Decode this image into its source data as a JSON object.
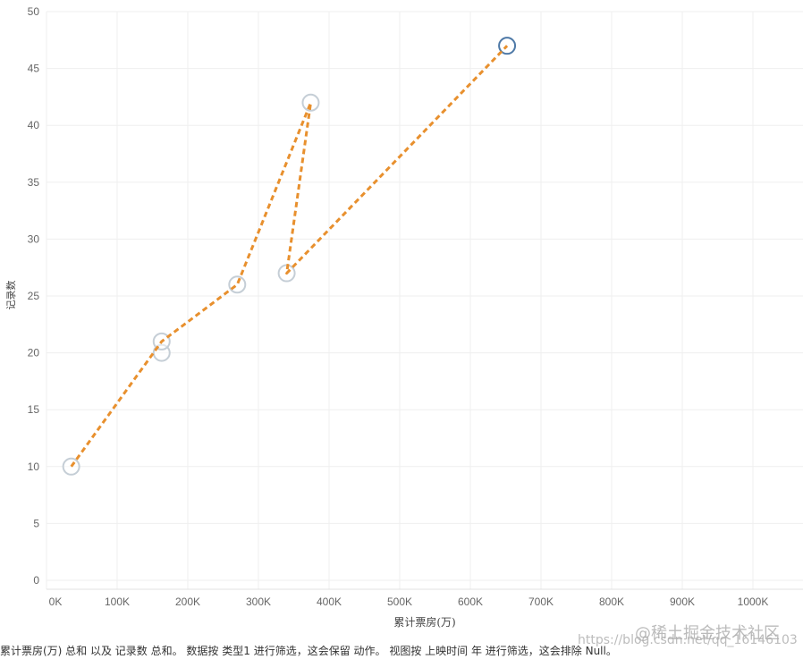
{
  "chart_data": {
    "type": "scatter",
    "title": "",
    "xlabel": "累计票房(万)",
    "ylabel": "记录数",
    "xlim": [
      0,
      1060000
    ],
    "ylim": [
      0,
      50
    ],
    "x_ticks": [
      "0K",
      "100K",
      "200K",
      "300K",
      "400K",
      "500K",
      "600K",
      "700K",
      "800K",
      "900K",
      "1000K"
    ],
    "y_ticks": [
      "0",
      "5",
      "10",
      "15",
      "20",
      "25",
      "30",
      "35",
      "40",
      "45",
      "50"
    ],
    "grid": true,
    "points": [
      {
        "x": 35000,
        "y": 10,
        "highlight": false
      },
      {
        "x": 163000,
        "y": 20,
        "highlight": false
      },
      {
        "x": 163000,
        "y": 21,
        "highlight": false
      },
      {
        "x": 270000,
        "y": 26,
        "highlight": false
      },
      {
        "x": 340000,
        "y": 27,
        "highlight": false
      },
      {
        "x": 374000,
        "y": 42,
        "highlight": false
      },
      {
        "x": 652000,
        "y": 47,
        "highlight": true
      }
    ],
    "trend_line": [
      {
        "x": 35000,
        "y": 10
      },
      {
        "x": 163000,
        "y": 21
      },
      {
        "x": 270000,
        "y": 26
      },
      {
        "x": 374000,
        "y": 42
      },
      {
        "x": 340000,
        "y": 27
      },
      {
        "x": 652000,
        "y": 47
      }
    ],
    "colors": {
      "point": "#c5ced6",
      "point_highlight": "#4e79a7",
      "trend": "#e8902e",
      "grid": "#efefef",
      "axis_text": "#666666"
    }
  },
  "caption": "累计票房(万) 总和 以及 记录数 总和。 数据按 类型1 进行筛选，这会保留 动作。 视图按 上映时间 年 进行筛选，这会排除 Null。",
  "watermark": "https://blog.csdn.net/qq_16146103",
  "watermark_brand": "@稀土掘金技术社区"
}
